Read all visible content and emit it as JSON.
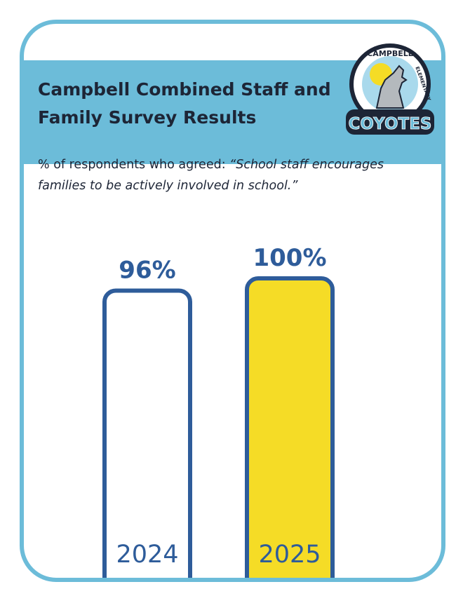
{
  "header": {
    "title": "Campbell Combined Staff and Family Survey Results",
    "subtitle_prefix": "% of respondents who agreed: ",
    "subtitle_quote": "“School staff encourages families to be actively involved in school.”"
  },
  "logo": {
    "top_text": "CAMPBELL",
    "side_text": "ELEMENTARY",
    "bottom_text": "COYOTES"
  },
  "colors": {
    "frame": "#6cbcd9",
    "bar_outline": "#2e5c9a",
    "bar_2025_fill": "#f5dc26",
    "bar_2024_fill": "#ffffff"
  },
  "chart_data": {
    "type": "bar",
    "categories": [
      "2024",
      "2025"
    ],
    "values": [
      96,
      100
    ],
    "value_labels": [
      "96%",
      "100%"
    ],
    "ylim": [
      0,
      100
    ],
    "grid": false
  }
}
